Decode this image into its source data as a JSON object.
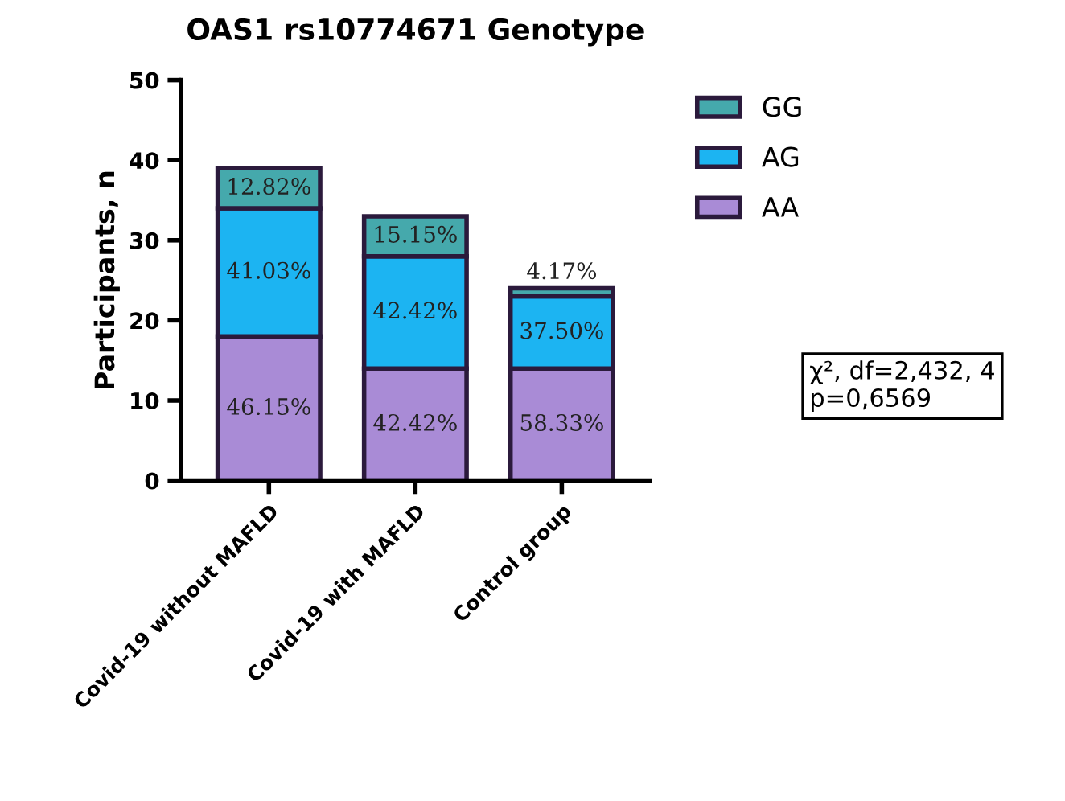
{
  "chart_data": {
    "type": "bar",
    "stacked": true,
    "title": "OAS1 rs10774671 Genotype",
    "ylabel": "Participants, n",
    "categories": [
      "Covid-19 without MAFLD",
      "Covid-19 with MAFLD",
      "Control group"
    ],
    "series": [
      {
        "name": "AA",
        "color": "#a98bd6",
        "values": [
          18,
          14,
          14
        ]
      },
      {
        "name": "AG",
        "color": "#1cb4f2",
        "values": [
          16,
          14,
          9
        ]
      },
      {
        "name": "GG",
        "color": "#45a9ac",
        "values": [
          5,
          5,
          1
        ]
      }
    ],
    "ylim": [
      0,
      50
    ],
    "yticks": [
      0,
      10,
      20,
      30,
      40,
      50
    ],
    "grid": false,
    "legend": "top right",
    "annotations": [
      "46.15%",
      "42.42%",
      "58.33%",
      "41.03%",
      "42.42%",
      "37.50%",
      "12.82%",
      "15.15%",
      "4.17%",
      "χ², df=2,432, 4\np=0,6569"
    ]
  }
}
